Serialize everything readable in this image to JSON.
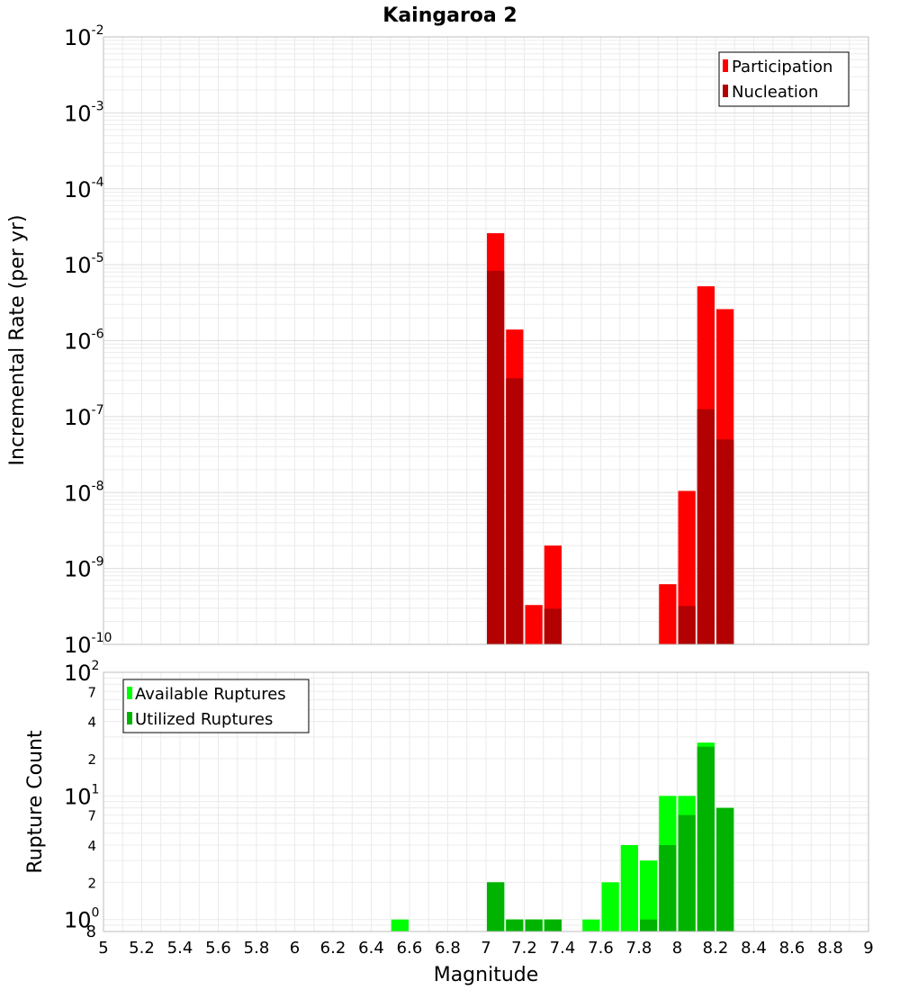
{
  "chart_data": [
    {
      "type": "bar",
      "title": "Kaingaroa 2",
      "xlabel": "",
      "ylabel": "Incremental Rate (per yr)",
      "xlim": [
        5,
        9
      ],
      "ylim": [
        1e-10,
        0.01
      ],
      "yscale": "log",
      "bin_width": 0.1,
      "grid": true,
      "legend_position": "top-right",
      "y_ticks": [
        {
          "base": "10",
          "exp": "-10"
        },
        {
          "base": "10",
          "exp": "-9"
        },
        {
          "base": "10",
          "exp": "-8"
        },
        {
          "base": "10",
          "exp": "-7"
        },
        {
          "base": "10",
          "exp": "-6"
        },
        {
          "base": "10",
          "exp": "-5"
        },
        {
          "base": "10",
          "exp": "-4"
        },
        {
          "base": "10",
          "exp": "-3"
        },
        {
          "base": "10",
          "exp": "-2"
        }
      ],
      "series": [
        {
          "name": "Participation",
          "color": "#ff0000",
          "x": [
            7.05,
            7.15,
            7.25,
            7.35,
            7.95,
            8.05,
            8.15,
            8.25
          ],
          "values": [
            2.6e-05,
            1.4e-06,
            3.3e-10,
            2e-09,
            6.2e-10,
            1.05e-08,
            5.2e-06,
            2.6e-06
          ]
        },
        {
          "name": "Nucleation",
          "color": "#b30000",
          "x": [
            7.05,
            7.15,
            7.25,
            7.35,
            7.95,
            8.05,
            8.15,
            8.25
          ],
          "values": [
            8.3e-06,
            3.2e-07,
            1e-10,
            2.95e-10,
            1e-10,
            3.2e-10,
            1.25e-07,
            5e-08
          ]
        }
      ]
    },
    {
      "type": "bar",
      "xlabel": "Magnitude",
      "ylabel": "Rupture Count",
      "xlim": [
        5,
        9
      ],
      "ylim": [
        0.8,
        100
      ],
      "yscale": "log",
      "bin_width": 0.1,
      "grid": true,
      "legend_position": "top-left",
      "x_ticks": [
        "5",
        "5.2",
        "5.4",
        "5.6",
        "5.8",
        "6",
        "6.2",
        "6.4",
        "6.6",
        "6.8",
        "7",
        "7.2",
        "7.4",
        "7.6",
        "7.8",
        "8",
        "8.2",
        "8.4",
        "8.6",
        "8.8",
        "9"
      ],
      "y_major_ticks": [
        {
          "base": "10",
          "exp": "0"
        },
        {
          "base": "10",
          "exp": "1"
        },
        {
          "base": "10",
          "exp": "2"
        }
      ],
      "y_minor_ticks": [
        {
          "value": 0.8,
          "label": "8"
        },
        {
          "value": 2,
          "label": "2"
        },
        {
          "value": 4,
          "label": "4"
        },
        {
          "value": 7,
          "label": "7"
        },
        {
          "value": 20,
          "label": "2"
        },
        {
          "value": 40,
          "label": "4"
        },
        {
          "value": 70,
          "label": "7"
        }
      ],
      "series": [
        {
          "name": "Available Ruptures",
          "color": "#00ff00",
          "x": [
            6.55,
            7.05,
            7.15,
            7.25,
            7.35,
            7.55,
            7.65,
            7.75,
            7.85,
            7.95,
            8.05,
            8.15,
            8.25
          ],
          "values": [
            1,
            2,
            1,
            1,
            1,
            1,
            2,
            4,
            3,
            10,
            10,
            27,
            8
          ]
        },
        {
          "name": "Utilized Ruptures",
          "color": "#00b300",
          "x": [
            7.05,
            7.15,
            7.25,
            7.35,
            7.85,
            7.95,
            8.05,
            8.15,
            8.25
          ],
          "values": [
            2,
            1,
            1,
            1,
            1,
            4,
            7,
            25,
            8
          ]
        }
      ]
    }
  ]
}
